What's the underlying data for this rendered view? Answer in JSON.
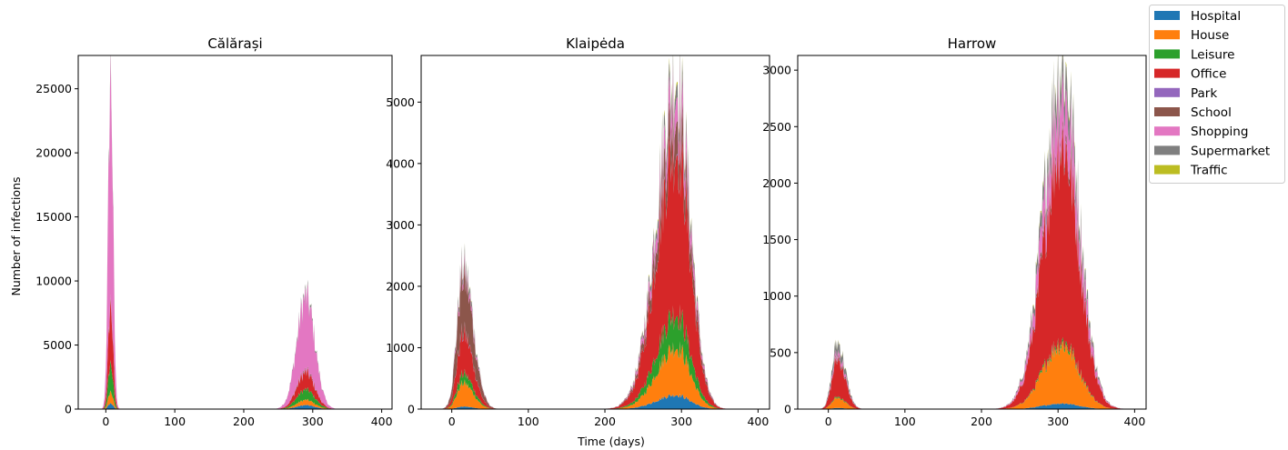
{
  "chart_data": {
    "type": "area",
    "stacked": true,
    "shared_xlabel": "Time (days)",
    "shared_ylabel": "Number of infections",
    "legend_position": "top-right",
    "x_ticks": [
      0,
      100,
      200,
      300,
      400
    ],
    "xlim": [
      -40,
      415
    ],
    "layers": [
      {
        "name": "Hospital",
        "color": "#1f77b4"
      },
      {
        "name": "House",
        "color": "#ff7f0e"
      },
      {
        "name": "Leisure",
        "color": "#2ca02c"
      },
      {
        "name": "Office",
        "color": "#d62728"
      },
      {
        "name": "Park",
        "color": "#9467bd"
      },
      {
        "name": "School",
        "color": "#8c564b"
      },
      {
        "name": "Shopping",
        "color": "#e377c2"
      },
      {
        "name": "Supermarket",
        "color": "#7f7f7f"
      },
      {
        "name": "Traffic",
        "color": "#bcbd22"
      }
    ],
    "panels": [
      {
        "title": "Călărași",
        "ylim": [
          0,
          27600
        ],
        "y_ticks": [
          0,
          5000,
          10000,
          15000,
          20000,
          25000
        ],
        "waves": [
          {
            "center": 7,
            "sigma_left": 3.5,
            "sigma_right": 3.5,
            "start": -15,
            "end": 25,
            "peaks": {
              "Hospital": 450,
              "House": 900,
              "Leisure": 2200,
              "Office": 4500,
              "Park": 50,
              "School": 200,
              "Shopping": 17500,
              "Supermarket": 500,
              "Traffic": 20
            }
          },
          {
            "center": 290,
            "sigma_left": 13,
            "sigma_right": 13,
            "start": 240,
            "end": 345,
            "peaks": {
              "Hospital": 300,
              "House": 400,
              "Leisure": 800,
              "Office": 1300,
              "Park": 30,
              "School": 100,
              "Shopping": 5700,
              "Supermarket": 200,
              "Traffic": 10
            }
          }
        ]
      },
      {
        "title": "Klaipėda",
        "ylim": [
          0,
          5760
        ],
        "y_ticks": [
          0,
          1000,
          2000,
          3000,
          4000,
          5000
        ],
        "waves": [
          {
            "center": 15,
            "sigma_left": 8,
            "sigma_right": 13,
            "start": -15,
            "end": 75,
            "peaks": {
              "Hospital": 40,
              "House": 380,
              "Leisure": 150,
              "Office": 650,
              "Park": 20,
              "School": 900,
              "Shopping": 100,
              "Supermarket": 100,
              "Traffic": 10
            }
          },
          {
            "center": 293,
            "sigma_left": 25,
            "sigma_right": 18,
            "start": 140,
            "end": 395,
            "peaks": {
              "Hospital": 230,
              "House": 780,
              "Leisure": 550,
              "Office": 2700,
              "Park": 20,
              "School": 550,
              "Shopping": 400,
              "Supermarket": 220,
              "Traffic": 40
            }
          }
        ]
      },
      {
        "title": "Harrow",
        "ylim": [
          0,
          3130
        ],
        "y_ticks": [
          0,
          500,
          1000,
          1500,
          2000,
          2500,
          3000
        ],
        "waves": [
          {
            "center": 12,
            "sigma_left": 7,
            "sigma_right": 10,
            "start": -15,
            "end": 65,
            "peaks": {
              "Hospital": 10,
              "House": 90,
              "Leisure": 10,
              "Office": 330,
              "Park": 5,
              "School": 20,
              "Shopping": 40,
              "Supermarket": 80,
              "Traffic": 5
            }
          },
          {
            "center": 305,
            "sigma_left": 24,
            "sigma_right": 22,
            "start": 160,
            "end": 398,
            "peaks": {
              "Hospital": 50,
              "House": 520,
              "Leisure": 30,
              "Office": 1750,
              "Park": 10,
              "School": 60,
              "Shopping": 400,
              "Supermarket": 220,
              "Traffic": 20
            }
          }
        ]
      }
    ]
  }
}
